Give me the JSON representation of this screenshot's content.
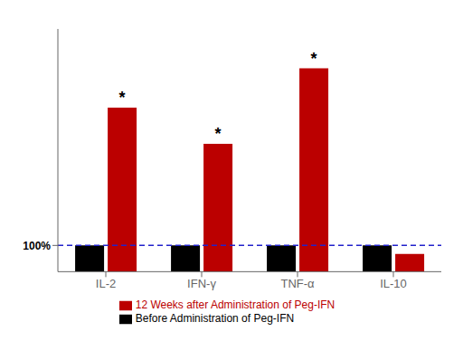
{
  "chart_data": {
    "type": "bar",
    "categories": [
      "IL-2",
      "IFN-γ",
      "TNF-α",
      "IL-10"
    ],
    "series": [
      {
        "name": "Before Administration of Peg-IFN",
        "color": "#000000",
        "values": [
          100,
          100,
          100,
          100
        ]
      },
      {
        "name": "12 Weeks after Administration of Peg-IFN",
        "color": "#bb0000",
        "values": [
          310,
          255,
          370,
          87
        ]
      }
    ],
    "ylim": [
      60,
      430
    ],
    "yticks": [
      {
        "value": 100,
        "label": "100%"
      }
    ],
    "grid": false,
    "legend": "bottom",
    "reference_line": {
      "y": 100,
      "color": "#2222cc",
      "line_style": "dashed"
    },
    "annotations": [
      {
        "category": "IL-2",
        "series": "12 Weeks after Administration of Peg-IFN",
        "text": "*"
      },
      {
        "category": "IFN-γ",
        "series": "12 Weeks after Administration of Peg-IFN",
        "text": "*"
      },
      {
        "category": "TNF-α",
        "series": "12 Weeks after Administration of Peg-IFN",
        "text": "*"
      }
    ]
  }
}
